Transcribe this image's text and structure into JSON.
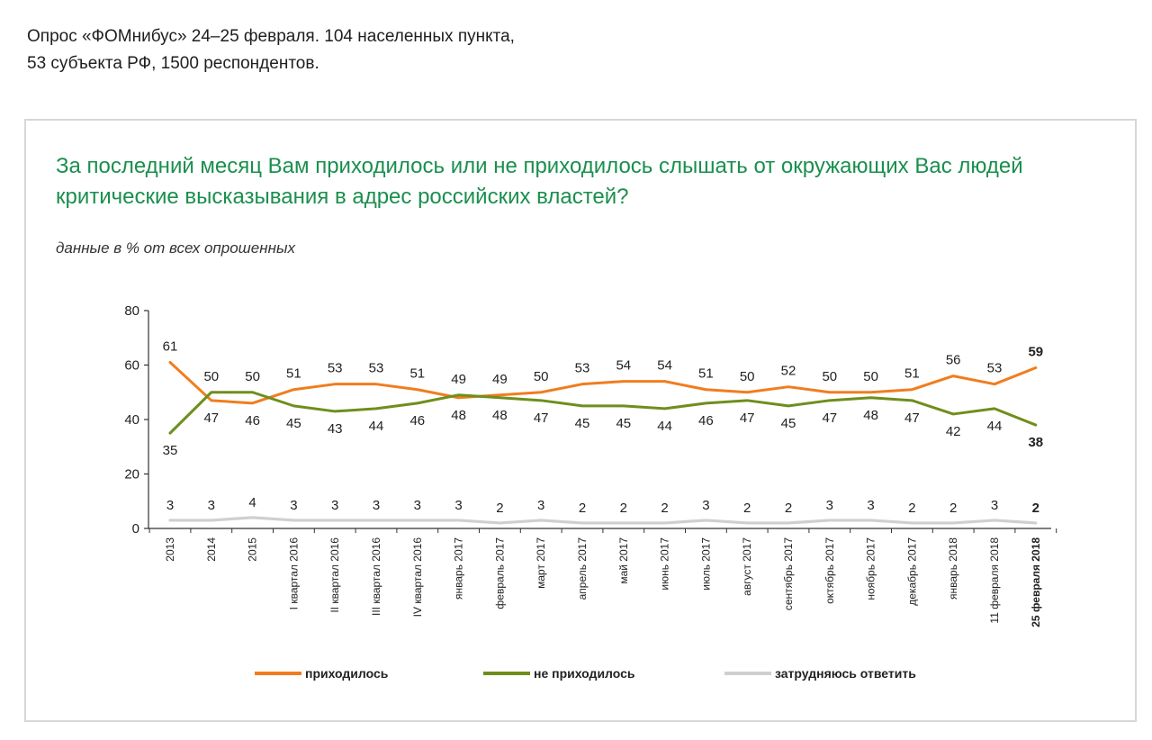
{
  "header": {
    "source_line1": "Опрос «ФОМнибус» 24–25 февраля. 104 населенных пункта,",
    "source_line2": "53 субъекта РФ, 1500 респондентов."
  },
  "question": {
    "title_line1": "За последний месяц Вам приходилось или не приходилось слышать от окружающих Вас людей",
    "title_line2": "критические высказывания в адрес российских властей?",
    "subtitle": "данные в % от всех опрошенных"
  },
  "chart_data": {
    "type": "line",
    "categories": [
      "2013",
      "2014",
      "2015",
      "I квартал 2016",
      "II квартал 2016",
      "III квартал 2016",
      "IV квартал 2016",
      "январь 2017",
      "февраль 2017",
      "март 2017",
      "апрель 2017",
      "май 2017",
      "июнь 2017",
      "июль 2017",
      "август 2017",
      "сентябрь 2017",
      "октябрь 2017",
      "ноябрь 2017",
      "декабрь 2017",
      "январь 2018",
      "11 февраля 2018",
      "25 февраля 2018"
    ],
    "series": [
      {
        "name": "приходилось",
        "color": "#f07d1f",
        "values": [
          61,
          47,
          46,
          51,
          53,
          53,
          51,
          48,
          49,
          50,
          53,
          54,
          54,
          51,
          50,
          52,
          50,
          50,
          51,
          56,
          53,
          59
        ]
      },
      {
        "name": "не приходилось",
        "color": "#6f8e1c",
        "values": [
          35,
          50,
          50,
          45,
          43,
          44,
          46,
          49,
          48,
          47,
          45,
          45,
          44,
          46,
          47,
          45,
          47,
          48,
          47,
          42,
          44,
          38
        ]
      },
      {
        "name": "затрудняюсь ответить",
        "color": "#cfcfcf",
        "values": [
          3,
          3,
          4,
          3,
          3,
          3,
          3,
          3,
          2,
          3,
          2,
          2,
          2,
          3,
          2,
          2,
          3,
          3,
          2,
          2,
          3,
          2
        ]
      }
    ],
    "yticks": [
      0,
      20,
      40,
      60,
      80
    ],
    "ylim": [
      0,
      80
    ],
    "highlight_last": true,
    "legend_position": "bottom"
  }
}
